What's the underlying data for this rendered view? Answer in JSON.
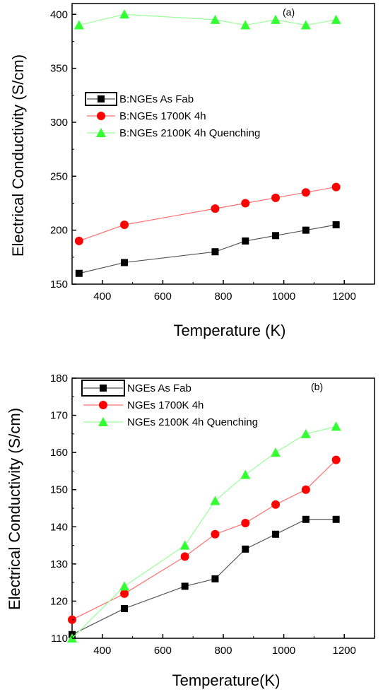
{
  "chart_data": [
    {
      "type": "line",
      "panel_label": "(a)",
      "xlabel": "Temperature (K)",
      "ylabel": "Electrical Conductivity (S/cm)",
      "xlim": [
        300,
        1300
      ],
      "ylim": [
        150,
        410
      ],
      "xticks": [
        400,
        600,
        800,
        1000,
        1200
      ],
      "yticks": [
        150,
        200,
        250,
        300,
        350,
        400
      ],
      "legend_position": "middle-left",
      "series": [
        {
          "name": "B:NGEs As Fab",
          "marker": "square",
          "color": "#000000",
          "line_color": "#555555",
          "x": [
            323,
            473,
            773,
            873,
            973,
            1073,
            1173
          ],
          "y": [
            160,
            170,
            180,
            190,
            195,
            200,
            205
          ]
        },
        {
          "name": "B:NGEs 1700K 4h",
          "marker": "circle",
          "color": "#ff0000",
          "line_color": "#ff7070",
          "x": [
            323,
            473,
            773,
            873,
            973,
            1073,
            1173
          ],
          "y": [
            190,
            205,
            220,
            225,
            230,
            235,
            240
          ]
        },
        {
          "name": "B:NGEs 2100K 4h Quenching",
          "marker": "triangle",
          "color": "#33ff33",
          "line_color": "#99ff99",
          "x": [
            323,
            473,
            773,
            873,
            973,
            1073,
            1173
          ],
          "y": [
            390,
            400,
            395,
            390,
            395,
            390,
            395
          ]
        }
      ]
    },
    {
      "type": "line",
      "panel_label": "(b)",
      "xlabel": "Temperature(K)",
      "ylabel": "Electrical Conductivity (S/cm)",
      "xlim": [
        300,
        1300
      ],
      "ylim": [
        110,
        180
      ],
      "xticks": [
        400,
        600,
        800,
        1000,
        1200
      ],
      "yticks": [
        110,
        120,
        130,
        140,
        150,
        160,
        170,
        180
      ],
      "legend_position": "top-left",
      "series": [
        {
          "name": "NGEs As Fab",
          "marker": "square",
          "color": "#000000",
          "line_color": "#555555",
          "x": [
            300,
            473,
            673,
            773,
            873,
            973,
            1073,
            1173
          ],
          "y": [
            111,
            118,
            124,
            126,
            134,
            138,
            142,
            142
          ]
        },
        {
          "name": "NGEs 1700K 4h",
          "marker": "circle",
          "color": "#ff0000",
          "line_color": "#ff7070",
          "x": [
            300,
            473,
            673,
            773,
            873,
            973,
            1073,
            1173
          ],
          "y": [
            115,
            122,
            132,
            138,
            141,
            146,
            150,
            158
          ]
        },
        {
          "name": "NGEs 2100K 4h Quenching",
          "marker": "triangle",
          "color": "#33ff33",
          "line_color": "#99ff99",
          "x": [
            300,
            473,
            673,
            773,
            873,
            973,
            1073,
            1173
          ],
          "y": [
            110,
            124,
            135,
            147,
            154,
            160,
            165,
            167
          ]
        }
      ]
    }
  ]
}
